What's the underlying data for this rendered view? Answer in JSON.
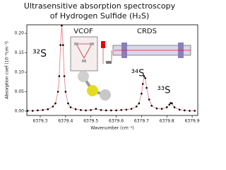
{
  "chart_data": {
    "type": "line",
    "title": [
      "Ultrasensitive absorption spectroscopy",
      "of Hydrogen Sulfide (H₂S)"
    ],
    "xlabel": "Wavenumber (cm⁻¹)",
    "ylabel": "Absorption coef (10⁻⁶cm⁻¹)",
    "xlim": [
      6379.247,
      6379.922
    ],
    "ylim": [
      -0.011,
      0.222
    ],
    "xticks": [
      6379.3,
      6379.4,
      6379.5,
      6379.6,
      6379.7,
      6379.8,
      6379.9
    ],
    "yticks": [
      {
        "value": 0,
        "label": "0.00"
      },
      {
        "value": 0.05,
        "label": "0.05"
      },
      {
        "value": 0.1,
        "label": "0.10"
      },
      {
        "value": 0.15,
        "label": "0.15"
      },
      {
        "value": 0.2,
        "label": "0.20"
      }
    ],
    "annotations": [
      "³²S",
      "³⁴S",
      "³³S",
      "VCOF",
      "CRDS"
    ],
    "series": [
      {
        "line_color": "#e8848a",
        "marker_color": "#000000",
        "x": [
          6379.25,
          6379.27,
          6379.29,
          6379.31,
          6379.33,
          6379.35,
          6379.36,
          6379.37,
          6379.375,
          6379.38,
          6379.385,
          6379.39,
          6379.395,
          6379.4,
          6379.41,
          6379.42,
          6379.44,
          6379.46,
          6379.48,
          6379.5,
          6379.52,
          6379.54,
          6379.56,
          6379.58,
          6379.6,
          6379.62,
          6379.64,
          6379.66,
          6379.68,
          6379.69,
          6379.7,
          6379.705,
          6379.71,
          6379.715,
          6379.72,
          6379.73,
          6379.74,
          6379.76,
          6379.78,
          6379.8,
          6379.81,
          6379.815,
          6379.82,
          6379.83,
          6379.85,
          6379.87,
          6379.89,
          6379.91
        ],
        "values": [
          0.001,
          0.001,
          0.002,
          0.003,
          0.005,
          0.012,
          0.02,
          0.05,
          0.09,
          0.17,
          0.22,
          0.17,
          0.09,
          0.05,
          0.02,
          0.01,
          0.005,
          0.003,
          0.002,
          0.003,
          0.006,
          0.003,
          0.002,
          0.002,
          0.002,
          0.003,
          0.004,
          0.006,
          0.012,
          0.02,
          0.045,
          0.07,
          0.09,
          0.085,
          0.06,
          0.03,
          0.014,
          0.007,
          0.006,
          0.01,
          0.017,
          0.021,
          0.02,
          0.01,
          0.004,
          0.002,
          0.001,
          0.001
        ]
      }
    ]
  }
}
